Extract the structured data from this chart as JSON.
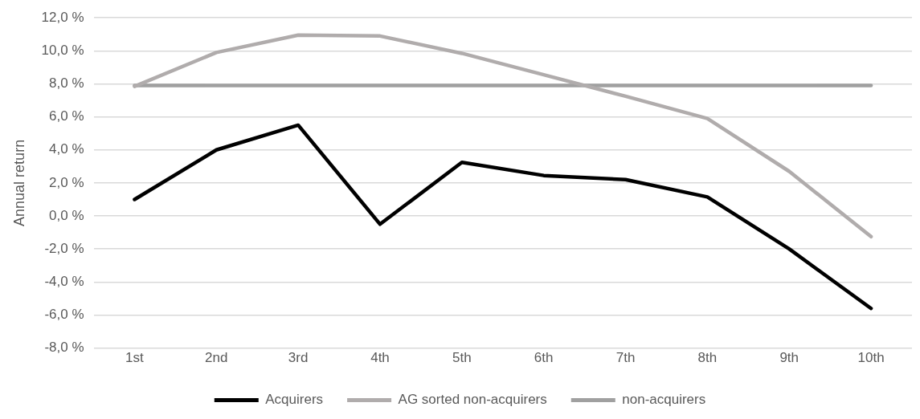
{
  "chart_data": {
    "type": "line",
    "ylabel": "Annual return",
    "categories": [
      "1st",
      "2nd",
      "3rd",
      "4th",
      "5th",
      "6th",
      "7th",
      "8th",
      "9th",
      "10th"
    ],
    "series": [
      {
        "name": "Acquirers",
        "color": "#000000",
        "values": [
          1.0,
          4.0,
          5.5,
          -0.5,
          3.25,
          2.45,
          2.2,
          1.15,
          -2.0,
          -5.6
        ]
      },
      {
        "name": "AG sorted non-acquirers",
        "color": "#b0acac",
        "values": [
          7.85,
          9.9,
          10.95,
          10.9,
          9.85,
          8.55,
          7.25,
          5.9,
          2.7,
          -1.25
        ]
      },
      {
        "name": "non-acquirers",
        "color": "#a0a0a0",
        "values": [
          7.9,
          7.9,
          7.9,
          7.9,
          7.9,
          7.9,
          7.9,
          7.9,
          7.9,
          7.9
        ]
      }
    ],
    "ylim": [
      -8,
      12
    ],
    "yticks": [
      {
        "value": -8,
        "label": "-8,0 %"
      },
      {
        "value": -6,
        "label": "-6,0 %"
      },
      {
        "value": -4,
        "label": "-4,0 %"
      },
      {
        "value": -2,
        "label": "-2,0 %"
      },
      {
        "value": 0,
        "label": "0,0 %"
      },
      {
        "value": 2,
        "label": "2,0 %"
      },
      {
        "value": 4,
        "label": "4,0 %"
      },
      {
        "value": 6,
        "label": "6,0 %"
      },
      {
        "value": 8,
        "label": "8,0 %"
      },
      {
        "value": 10,
        "label": "10,0 %"
      },
      {
        "value": 12,
        "label": "12,0 %"
      }
    ],
    "grid": "y",
    "legend": "bottom",
    "marker": "none",
    "line_style": "solid"
  }
}
